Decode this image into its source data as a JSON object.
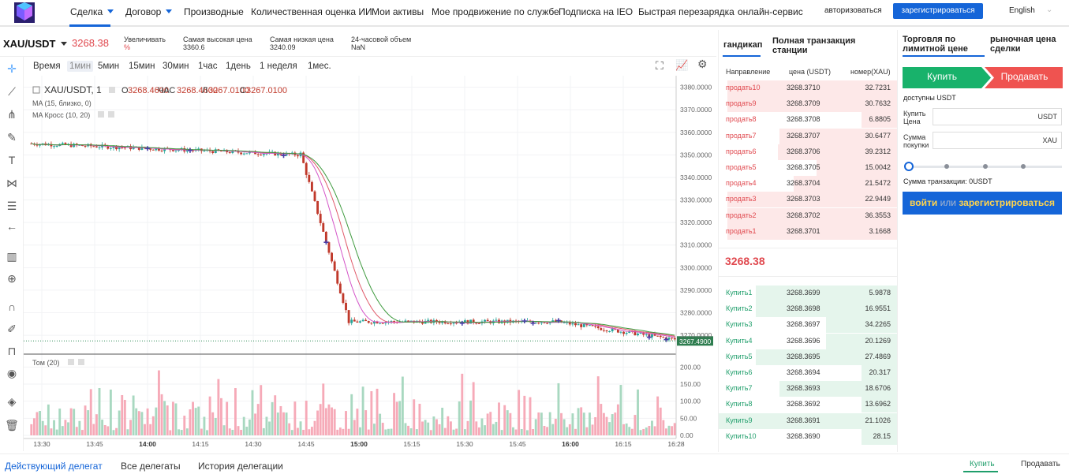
{
  "nav": {
    "items": [
      {
        "label": "Сделка",
        "dropdown": true
      },
      {
        "label": "Договор",
        "dropdown": true
      },
      {
        "label": "Производные"
      },
      {
        "label": "Количественная оценка ИИ"
      },
      {
        "label": "Мои активы"
      },
      {
        "label": "Мое продвижение по службе"
      },
      {
        "label": "Подписка на IEO"
      },
      {
        "label": "Быстрая перезарядка"
      },
      {
        "label": "онлайн-сервис"
      }
    ],
    "login": "авторизоваться",
    "register": "зарегистрироваться",
    "language": "English",
    "colors": {
      "accent": "#1565d8"
    }
  },
  "pair": {
    "symbol": "XAU/USDT",
    "price": "3268.38",
    "stats": [
      {
        "label": "Увеличивать",
        "value": "%"
      },
      {
        "label": "Самая высокая цена",
        "value": "3360.6"
      },
      {
        "label": "Самая низкая цена",
        "value": "3240.09"
      },
      {
        "label": "24-часовой объем",
        "value": "NaN"
      }
    ]
  },
  "tools": [
    "crosshair-icon",
    "trendline-icon",
    "fork-icon",
    "brush-icon",
    "text-icon",
    "pattern-icon",
    "fib-icon",
    "back-arrow-icon",
    "measure-icon",
    "zoom-icon",
    "magnet-icon",
    "lock-drawing-icon",
    "unlock-icon",
    "eye-icon",
    "layers-icon",
    "trash-icon"
  ],
  "intervals": {
    "items": [
      "Время",
      "1мин",
      "5мин",
      "15мин",
      "30мин",
      "1час",
      "1день",
      "1 неделя",
      "1мес."
    ],
    "selected": "1мин"
  },
  "chart": {
    "legend_symbol": "XAU/USDT, 1",
    "ohlc": [
      {
        "k": "О",
        "v": "3268.4600"
      },
      {
        "k": "ЧАС",
        "v": "3268.4600"
      },
      {
        "k": "Л",
        "v": "3267.0100"
      },
      {
        "k": "С",
        "v": "3267.0100"
      }
    ],
    "ma1": "MA (15, близко, 0)",
    "ma2": "MA Кросс (10, 20)",
    "vol_label": "Том (20)",
    "last_price_tag": "3267.4900"
  },
  "chart_data": {
    "type": "candlestick",
    "price_axis": {
      "ticks": [
        3380,
        3370,
        3360,
        3350,
        3340,
        3330,
        3320,
        3310,
        3300,
        3290,
        3280,
        3270
      ],
      "format": "0000.0000",
      "ylim": [
        3262,
        3383
      ]
    },
    "volume_axis": {
      "ticks": [
        200,
        150,
        100,
        50,
        0
      ],
      "format": "0.00",
      "ylim": [
        0,
        210
      ]
    },
    "time_axis": {
      "ticks": [
        "13:30",
        "13:45",
        "14:00",
        "14:15",
        "14:30",
        "14:45",
        "15:00",
        "15:15",
        "15:30",
        "15:45",
        "16:00",
        "16:15",
        "16:28"
      ],
      "bold": [
        "14:00",
        "15:00",
        "16:00"
      ]
    },
    "segments": [
      {
        "from": 0,
        "to": 95,
        "start": 3355,
        "end": 3350
      },
      {
        "from": 95,
        "to": 112,
        "start": 3350,
        "end": 3276
      },
      {
        "from": 112,
        "to": 185,
        "start": 3276,
        "end": 3276
      },
      {
        "from": 185,
        "to": 228,
        "start": 3276,
        "end": 3268
      }
    ],
    "series": [
      {
        "name": "MA (15, близко, 0)",
        "color": "#e05a6a"
      },
      {
        "name": "MA Кросс (10, 20)",
        "colors": [
          "#d455c8",
          "#3e9a3e"
        ]
      }
    ],
    "colors": {
      "up": "#26a69a",
      "down": "#c0392b",
      "vol_up": "#a8d8c0",
      "vol_down": "#f6aab8"
    }
  },
  "orderbook": {
    "tabs": [
      "гандикап",
      "Полная транзакция станции"
    ],
    "headers": [
      "Направление",
      "цена (USDT)",
      "номер(XAU)"
    ],
    "sells": [
      {
        "dir": "продать10",
        "price": "3268.3710",
        "qty": "32.7231",
        "depth": 0.95
      },
      {
        "dir": "продать9",
        "price": "3268.3709",
        "qty": "30.7632",
        "depth": 0.95
      },
      {
        "dir": "продать8",
        "price": "3268.3708",
        "qty": "6.8805",
        "depth": 0.2
      },
      {
        "dir": "продать7",
        "price": "3268.3707",
        "qty": "30.6477",
        "depth": 0.66
      },
      {
        "dir": "продать6",
        "price": "3268.3706",
        "qty": "39.2312",
        "depth": 0.67
      },
      {
        "dir": "продать5",
        "price": "3268.3705",
        "qty": "15.0042",
        "depth": 0.45
      },
      {
        "dir": "продать4",
        "price": "3268.3704",
        "qty": "21.5472",
        "depth": 0.58
      },
      {
        "dir": "продать3",
        "price": "3268.3703",
        "qty": "22.9449",
        "depth": 0.95
      },
      {
        "dir": "продать2",
        "price": "3268.3702",
        "qty": "36.3553",
        "depth": 0.95
      },
      {
        "dir": "продать1",
        "price": "3268.3701",
        "qty": "3.1668",
        "depth": 0.95
      }
    ],
    "last": "3268.38",
    "buys": [
      {
        "dir": "Купить1",
        "price": "3268.3699",
        "qty": "5.9878",
        "depth": 0.79
      },
      {
        "dir": "Купить2",
        "price": "3268.3698",
        "qty": "16.9551",
        "depth": 0.79
      },
      {
        "dir": "Купить3",
        "price": "3268.3697",
        "qty": "34.2265",
        "depth": 0.4
      },
      {
        "dir": "Купить4",
        "price": "3268.3696",
        "qty": "20.1269",
        "depth": 0.4
      },
      {
        "dir": "Купить5",
        "price": "3268.3695",
        "qty": "27.4869",
        "depth": 0.79
      },
      {
        "dir": "Купить6",
        "price": "3268.3694",
        "qty": "20.317",
        "depth": 0.2
      },
      {
        "dir": "Купить7",
        "price": "3268.3693",
        "qty": "18.6706",
        "depth": 0.66
      },
      {
        "dir": "Купить8",
        "price": "3268.3692",
        "qty": "13.6962",
        "depth": 0.2
      },
      {
        "dir": "Купить9",
        "price": "3268.3691",
        "qty": "21.1026",
        "depth": 1.0
      },
      {
        "dir": "Купить10",
        "price": "3268.3690",
        "qty": "28.15",
        "depth": 0.2
      }
    ],
    "colors": {
      "sell": "#e0484e",
      "buy": "#1f9e6b",
      "sell_bg": "#fde8e8",
      "buy_bg": "#e5f5ec"
    }
  },
  "trade": {
    "tabs": [
      "Торговля по лимитной цене",
      "рыночная цена сделки"
    ],
    "buy": "Купить",
    "sell": "Продавать",
    "available": "доступны USDT",
    "price_label": "Купить Цена",
    "price_unit": "USDT",
    "amount_label": "Сумма покупки",
    "amount_unit": "XAU",
    "total": "Сумма транзакции: 0USDT",
    "login_part1": "войти",
    "login_or": "или",
    "login_part2": "зарегистрироваться",
    "colors": {
      "buy": "#18b26b",
      "sell": "#ef5350",
      "cta": "#1565d8",
      "cta_text": "#ffd44d"
    }
  },
  "bottom": {
    "tabs": [
      "Действующий делегат",
      "Все делегаты",
      "История делегации"
    ],
    "right": [
      "Купить",
      "Продавать"
    ]
  }
}
